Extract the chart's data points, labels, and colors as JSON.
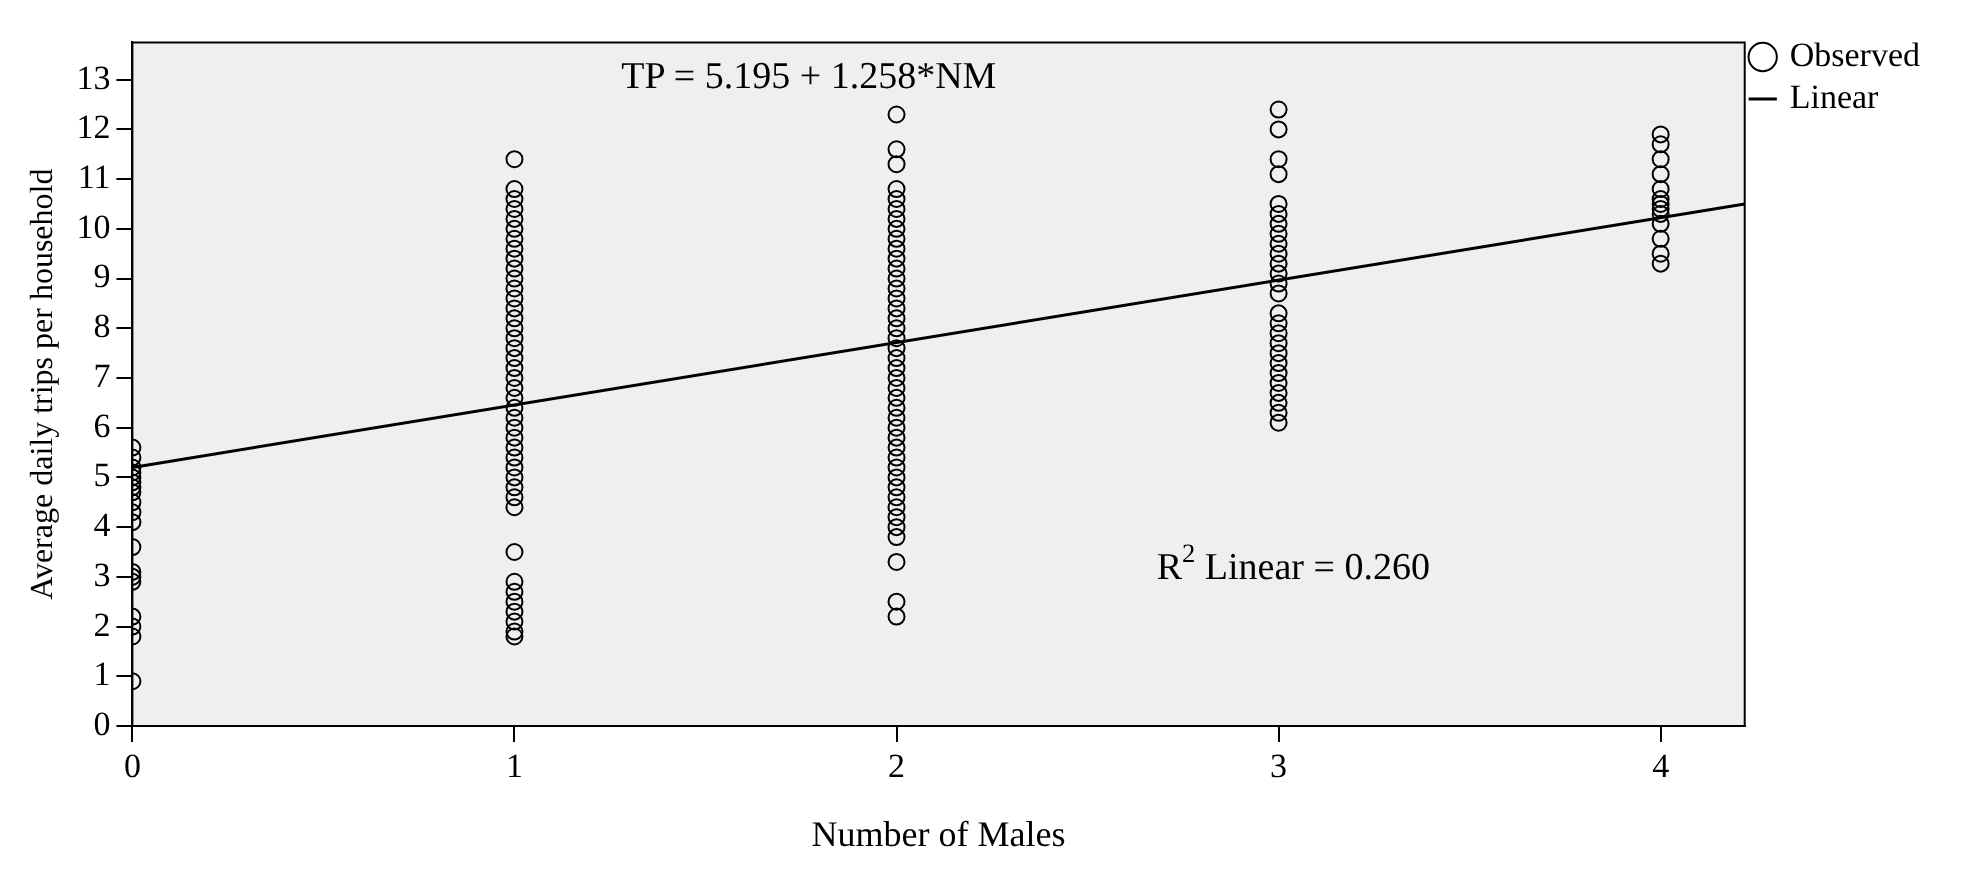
{
  "chart_data": {
    "type": "scatter",
    "xlabel": "Number of Males",
    "ylabel": "Average daily trips per household",
    "annotations": [
      "TP = 5.195 + 1.258*NM",
      "R$^{2}$ Linear = 0.260"
    ],
    "xlim": [
      0,
      4.22
    ],
    "xticks": [
      0,
      1,
      2,
      3,
      4
    ],
    "ylim": [
      0,
      13.75
    ],
    "yticks": [
      0,
      1,
      2,
      3,
      4,
      5,
      6,
      7,
      8,
      9,
      10,
      11,
      12,
      13
    ],
    "legend": "top right",
    "series": [
      {
        "name": "Observed",
        "marker": "circle",
        "color": "#000000",
        "x": [
          0,
          0,
          0,
          0,
          0,
          0,
          0,
          0,
          0,
          0,
          0,
          0,
          0,
          0,
          0,
          0,
          0,
          0,
          0,
          1,
          1,
          1,
          1,
          1,
          1,
          1,
          1,
          1,
          1,
          1,
          1,
          1,
          1,
          1,
          1,
          1,
          1,
          1,
          1,
          1,
          1,
          1,
          1,
          1,
          1,
          1,
          1,
          1,
          1,
          1,
          1,
          1,
          1,
          1,
          1,
          1,
          1,
          1,
          1,
          1,
          1,
          2,
          2,
          2,
          2,
          2,
          2,
          2,
          2,
          2,
          2,
          2,
          2,
          2,
          2,
          2,
          2,
          2,
          2,
          2,
          2,
          2,
          2,
          2,
          2,
          2,
          2,
          2,
          2,
          2,
          2,
          2,
          2,
          2,
          2,
          2,
          2,
          2,
          2,
          2,
          2,
          2,
          2,
          3,
          3,
          3,
          3,
          3,
          3,
          3,
          3,
          3,
          3,
          3,
          3,
          3,
          3,
          3,
          3,
          3,
          3,
          3,
          3,
          3,
          3,
          3,
          3,
          3,
          3,
          4,
          4,
          4,
          4,
          4,
          4,
          4,
          4,
          4,
          4,
          4,
          4,
          4
        ],
        "values": [
          0.9,
          1.8,
          2.0,
          2.2,
          2.9,
          3.0,
          3.1,
          3.6,
          4.1,
          4.3,
          4.5,
          4.7,
          4.8,
          4.9,
          5.0,
          5.1,
          5.2,
          5.4,
          5.6,
          11.4,
          10.8,
          10.6,
          10.4,
          10.2,
          10.0,
          9.8,
          9.6,
          9.4,
          9.2,
          9.0,
          8.8,
          8.6,
          8.4,
          8.2,
          8.0,
          7.8,
          7.6,
          7.4,
          7.2,
          7.0,
          6.8,
          6.6,
          6.4,
          6.2,
          6.0,
          5.8,
          5.6,
          5.4,
          5.2,
          5.0,
          4.8,
          4.6,
          4.4,
          3.5,
          2.9,
          2.7,
          2.5,
          2.3,
          2.1,
          1.9,
          1.8,
          12.3,
          11.6,
          11.3,
          10.8,
          10.6,
          10.4,
          10.2,
          10.0,
          9.8,
          9.6,
          9.4,
          9.2,
          9.0,
          8.8,
          8.6,
          8.4,
          8.2,
          8.0,
          7.8,
          7.6,
          7.4,
          7.2,
          7.0,
          6.8,
          6.6,
          6.4,
          6.2,
          6.0,
          5.8,
          5.6,
          5.4,
          5.2,
          5.0,
          4.8,
          4.6,
          4.4,
          4.2,
          4.0,
          3.8,
          3.3,
          2.5,
          2.2,
          12.4,
          12.0,
          11.4,
          11.1,
          10.5,
          10.3,
          10.1,
          9.9,
          9.7,
          9.5,
          9.3,
          9.1,
          8.9,
          8.7,
          8.3,
          8.1,
          7.9,
          7.7,
          7.5,
          7.3,
          7.1,
          6.9,
          6.7,
          6.5,
          6.3,
          6.1,
          11.9,
          11.7,
          11.4,
          11.1,
          10.8,
          10.6,
          10.5,
          10.4,
          10.3,
          10.1,
          9.8,
          9.5,
          9.3
        ]
      },
      {
        "name": "Linear",
        "type": "line",
        "marker": "none",
        "color": "#000000",
        "x": [
          0,
          4.22
        ],
        "values": [
          5.2,
          10.5
        ]
      }
    ]
  }
}
